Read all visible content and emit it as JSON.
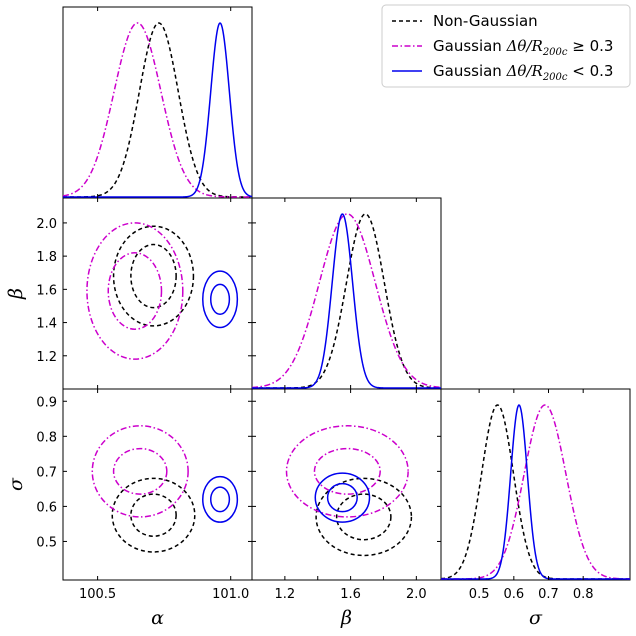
{
  "chart_data": {
    "type": "corner",
    "parameters": [
      {
        "name": "alpha",
        "label": "α",
        "range": [
          100.37,
          101.08
        ],
        "ticks": [
          100.5,
          101.0
        ],
        "tick_labels": [
          "100.5",
          "101.0"
        ]
      },
      {
        "name": "beta",
        "label": "β",
        "range": [
          1.0,
          2.15
        ],
        "ticks": [
          1.2,
          1.4,
          1.6,
          1.8,
          2.0
        ],
        "tick_labels": [
          "1.2",
          "1.4",
          "1.6",
          "1.8",
          "2.0"
        ]
      },
      {
        "name": "sigma",
        "label": "σ",
        "range": [
          0.39,
          0.935
        ],
        "ticks": [
          0.5,
          0.6,
          0.7,
          0.8,
          0.9
        ],
        "tick_labels": [
          "0.5",
          "0.6",
          "0.7",
          "0.8",
          "0.9"
        ]
      }
    ],
    "x_tick_labels": {
      "beta": [
        "1.2",
        "1.6",
        "2.0"
      ],
      "sigma": [
        "0.5",
        "0.6",
        "0.7",
        "0.8"
      ]
    },
    "x_tick_values": {
      "beta": [
        1.2,
        1.6,
        2.0
      ],
      "sigma": [
        0.5,
        0.6,
        0.7,
        0.8
      ]
    },
    "legend_position": "top-right",
    "series": [
      {
        "name": "Non-Gaussian",
        "color": "#000000",
        "style": "dashed",
        "mean": {
          "alpha": 100.73,
          "beta": 1.69,
          "sigma": 0.553
        },
        "sd": {
          "alpha": 0.073,
          "beta": 0.115,
          "sigma": 0.046
        },
        "contours": {
          "alpha_beta": {
            "center": [
              100.71,
              1.68
            ],
            "r68": [
              0.085,
              0.19
            ],
            "r95": [
              0.15,
              0.3
            ]
          },
          "alpha_sigma": {
            "center": [
              100.71,
              0.575
            ],
            "r68": [
              0.085,
              0.06
            ],
            "r95": [
              0.155,
              0.105
            ]
          },
          "beta_sigma": {
            "center": [
              1.68,
              0.57
            ],
            "r68": [
              0.165,
              0.065
            ],
            "r95": [
              0.29,
              0.11
            ]
          }
        }
      },
      {
        "name": "Gaussian Δθ/R200c ≥ 0.3",
        "name_prefix": "Gaussian ",
        "name_math": "Δθ/R",
        "name_sub": "200c",
        "name_suffix": " ≥ 0.3",
        "color": "#cc00cc",
        "style": "dashdot",
        "mean": {
          "alpha": 100.65,
          "beta": 1.58,
          "sigma": 0.69
        },
        "sd": {
          "alpha": 0.088,
          "beta": 0.17,
          "sigma": 0.06
        },
        "contours": {
          "alpha_beta": {
            "center": [
              100.64,
              1.59
            ],
            "r68": [
              0.1,
              0.23
            ],
            "r95": [
              0.18,
              0.41
            ]
          },
          "alpha_sigma": {
            "center": [
              100.66,
              0.7
            ],
            "r68": [
              0.1,
              0.065
            ],
            "r95": [
              0.18,
              0.13
            ]
          },
          "beta_sigma": {
            "center": [
              1.58,
              0.7
            ],
            "r68": [
              0.2,
              0.065
            ],
            "r95": [
              0.37,
              0.13
            ]
          }
        }
      },
      {
        "name": "Gaussian Δθ/R200c < 0.3",
        "name_prefix": "Gaussian ",
        "name_math": "Δθ/R",
        "name_sub": "200c",
        "name_suffix": " < 0.3",
        "color": "#0000ee",
        "style": "solid",
        "mean": {
          "alpha": 100.96,
          "beta": 1.55,
          "sigma": 0.615
        },
        "sd": {
          "alpha": 0.035,
          "beta": 0.062,
          "sigma": 0.024
        },
        "contours": {
          "alpha_beta": {
            "center": [
              100.96,
              1.54
            ],
            "r68": [
              0.035,
              0.09
            ],
            "r95": [
              0.065,
              0.17
            ]
          },
          "alpha_sigma": {
            "center": [
              100.96,
              0.62
            ],
            "r68": [
              0.035,
              0.035
            ],
            "r95": [
              0.065,
              0.065
            ]
          },
          "beta_sigma": {
            "center": [
              1.55,
              0.625
            ],
            "r68": [
              0.09,
              0.04
            ],
            "r95": [
              0.165,
              0.07
            ]
          }
        }
      }
    ]
  }
}
